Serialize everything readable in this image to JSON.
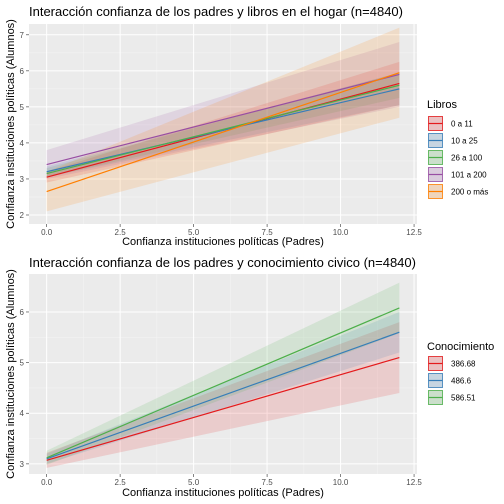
{
  "chart_data": [
    {
      "type": "line",
      "title": "Interacción confianza de los padres y libros en el hogar (n=4840)",
      "xlabel": "Confianza instituciones políticas (Padres)",
      "ylabel": "Confianza instituciones políticas (Alumnos)",
      "xlim": [
        -0.6,
        12.6
      ],
      "ylim": [
        1.75,
        7.3
      ],
      "x_ticks": [
        0,
        2.5,
        5,
        7.5,
        10,
        12.5
      ],
      "x_tick_labels": [
        "0.0",
        "2.5",
        "5.0",
        "7.5",
        "10.0",
        "12.5"
      ],
      "y_ticks": [
        2,
        3,
        4,
        5,
        6,
        7
      ],
      "y_tick_labels": [
        "2",
        "3",
        "4",
        "5",
        "6",
        "7"
      ],
      "grid": true,
      "legend_title": "Libros",
      "legend_position": "right",
      "x": [
        0,
        12
      ],
      "series": [
        {
          "name": "0 a 11",
          "color": "#E41A1C",
          "values": [
            3.05,
            5.65
          ],
          "lower": [
            2.9,
            5.05
          ],
          "upper": [
            3.2,
            6.25
          ]
        },
        {
          "name": "10 a 25",
          "color": "#377EB8",
          "values": [
            3.2,
            5.5
          ],
          "lower": [
            3.05,
            5.05
          ],
          "upper": [
            3.35,
            5.95
          ]
        },
        {
          "name": "26 a 100",
          "color": "#4DAF4A",
          "values": [
            3.15,
            5.6
          ],
          "lower": [
            3.05,
            5.25
          ],
          "upper": [
            3.3,
            5.95
          ]
        },
        {
          "name": "101 a 200",
          "color": "#984EA3",
          "values": [
            3.4,
            5.9
          ],
          "lower": [
            3.0,
            5.0
          ],
          "upper": [
            3.8,
            6.8
          ]
        },
        {
          "name": "200 o más",
          "color": "#FF7F00",
          "values": [
            2.65,
            5.95
          ],
          "lower": [
            2.1,
            4.7
          ],
          "upper": [
            3.2,
            7.2
          ]
        }
      ]
    },
    {
      "type": "line",
      "title": "Interacción confianza de los padres y conocimiento civico (n=4840)",
      "xlabel": "Confianza instituciones políticas (Padres)",
      "ylabel": "Confianza instituciones políticas (Alumnos)",
      "xlim": [
        -0.6,
        12.6
      ],
      "ylim": [
        2.8,
        6.75
      ],
      "x_ticks": [
        0,
        2.5,
        5,
        7.5,
        10,
        12.5
      ],
      "x_tick_labels": [
        "0.0",
        "2.5",
        "5.0",
        "7.5",
        "10.0",
        "12.5"
      ],
      "y_ticks": [
        3,
        4,
        5,
        6
      ],
      "y_tick_labels": [
        "3",
        "4",
        "5",
        "6"
      ],
      "grid": true,
      "legend_title": "Conocimiento",
      "legend_position": "right",
      "x": [
        0,
        12
      ],
      "series": [
        {
          "name": "386.68",
          "color": "#E41A1C",
          "values": [
            3.07,
            5.1
          ],
          "lower": [
            2.92,
            4.4
          ],
          "upper": [
            3.22,
            5.8
          ]
        },
        {
          "name": "486.6",
          "color": "#377EB8",
          "values": [
            3.1,
            5.6
          ],
          "lower": [
            3.0,
            5.2
          ],
          "upper": [
            3.2,
            6.0
          ]
        },
        {
          "name": "586.51",
          "color": "#4DAF4A",
          "values": [
            3.12,
            6.08
          ],
          "lower": [
            2.98,
            5.58
          ],
          "upper": [
            3.26,
            6.58
          ]
        }
      ]
    }
  ]
}
